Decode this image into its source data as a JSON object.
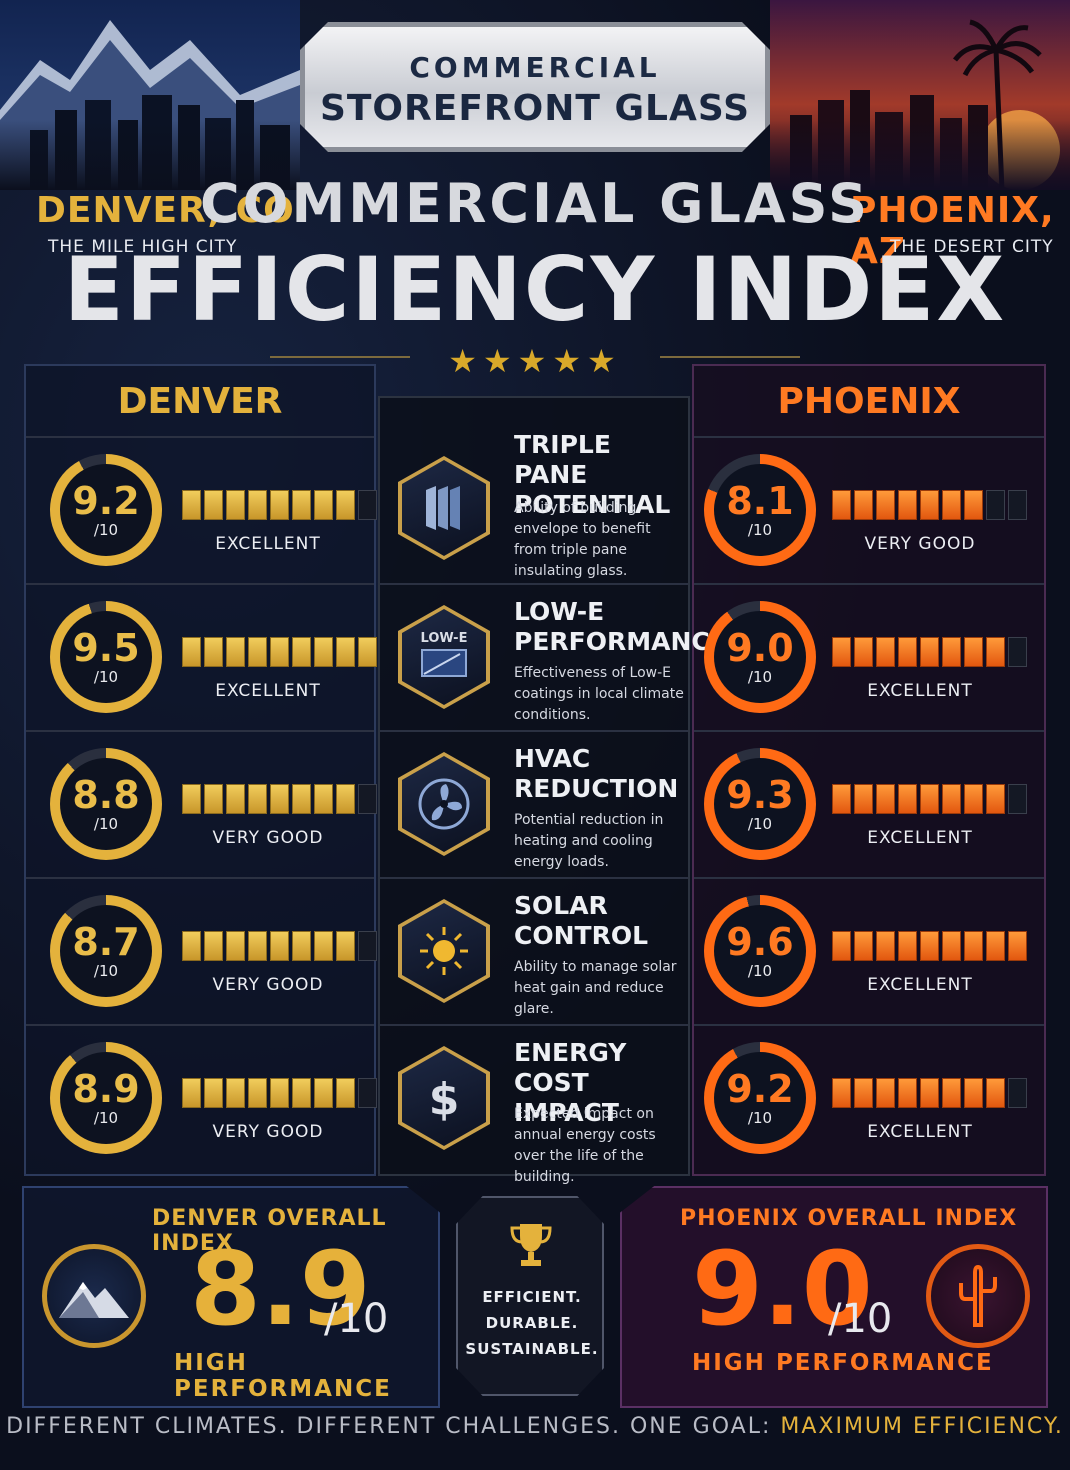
{
  "colors": {
    "gold": "#e4b23c",
    "orange": "#ff7a22",
    "navy": "#0d1428",
    "purple": "#2a1030"
  },
  "badge": {
    "line1": "COMMERCIAL",
    "line2": "STOREFRONT GLASS"
  },
  "left_city": {
    "name": "DENVER, CO",
    "subtitle": "THE MILE HIGH CITY"
  },
  "right_city": {
    "name": "PHOENIX, AZ",
    "subtitle": "THE DESERT CITY"
  },
  "title": {
    "line1": "COMMERCIAL GLASS",
    "line2": "EFFICIENCY INDEX",
    "stars": "★★★★★"
  },
  "columns": {
    "left": "DENVER",
    "right": "PHOENIX"
  },
  "metrics": [
    {
      "icon": "glass-panes-icon",
      "title": "TRIPLE PANE POTENTIAL",
      "desc": "Ability of building envelope to benefit from triple pane insulating glass.",
      "denver": {
        "score": "9.2",
        "den": "/10",
        "rating": "EXCELLENT",
        "fill": 0.92
      },
      "phoenix": {
        "score": "8.1",
        "den": "/10",
        "rating": "VERY GOOD",
        "fill": 0.81
      }
    },
    {
      "icon": "low-e-icon",
      "icon_label": "LOW-E",
      "title": "LOW-E PERFORMANCE",
      "desc": "Effectiveness of Low-E coatings in local climate conditions.",
      "denver": {
        "score": "9.5",
        "den": "/10",
        "rating": "EXCELLENT",
        "fill": 0.95
      },
      "phoenix": {
        "score": "9.0",
        "den": "/10",
        "rating": "EXCELLENT",
        "fill": 0.9
      }
    },
    {
      "icon": "fan-icon",
      "title": "HVAC REDUCTION",
      "desc": "Potential reduction in heating and cooling energy loads.",
      "denver": {
        "score": "8.8",
        "den": "/10",
        "rating": "VERY GOOD",
        "fill": 0.88
      },
      "phoenix": {
        "score": "9.3",
        "den": "/10",
        "rating": "EXCELLENT",
        "fill": 0.93
      }
    },
    {
      "icon": "sun-icon",
      "title": "SOLAR CONTROL",
      "desc": "Ability to manage solar heat gain and reduce glare.",
      "denver": {
        "score": "8.7",
        "den": "/10",
        "rating": "VERY GOOD",
        "fill": 0.87
      },
      "phoenix": {
        "score": "9.6",
        "den": "/10",
        "rating": "EXCELLENT",
        "fill": 0.96
      }
    },
    {
      "icon": "dollar-icon",
      "title": "ENERGY COST IMPACT",
      "desc": "Expected impact on annual energy costs over the life of the building.",
      "denver": {
        "score": "8.9",
        "den": "/10",
        "rating": "VERY GOOD",
        "fill": 0.89
      },
      "phoenix": {
        "score": "9.2",
        "den": "/10",
        "rating": "EXCELLENT",
        "fill": 0.92
      }
    }
  ],
  "overall": {
    "denver": {
      "title": "DENVER OVERALL INDEX",
      "score": "8.9",
      "den": "/10",
      "sub": "HIGH PERFORMANCE",
      "icon": "mountain-icon"
    },
    "phoenix": {
      "title": "PHOENIX OVERALL INDEX",
      "score": "9.0",
      "den": "/10",
      "sub": "HIGH PERFORMANCE",
      "icon": "cactus-icon"
    },
    "middle": {
      "icon": "trophy-icon",
      "line1": "EFFICIENT.",
      "line2": "DURABLE.",
      "line3": "SUSTAINABLE."
    }
  },
  "footer": {
    "text": "DIFFERENT CLIMATES. DIFFERENT CHALLENGES. ONE GOAL:",
    "highlight": "MAXIMUM EFFICIENCY."
  }
}
